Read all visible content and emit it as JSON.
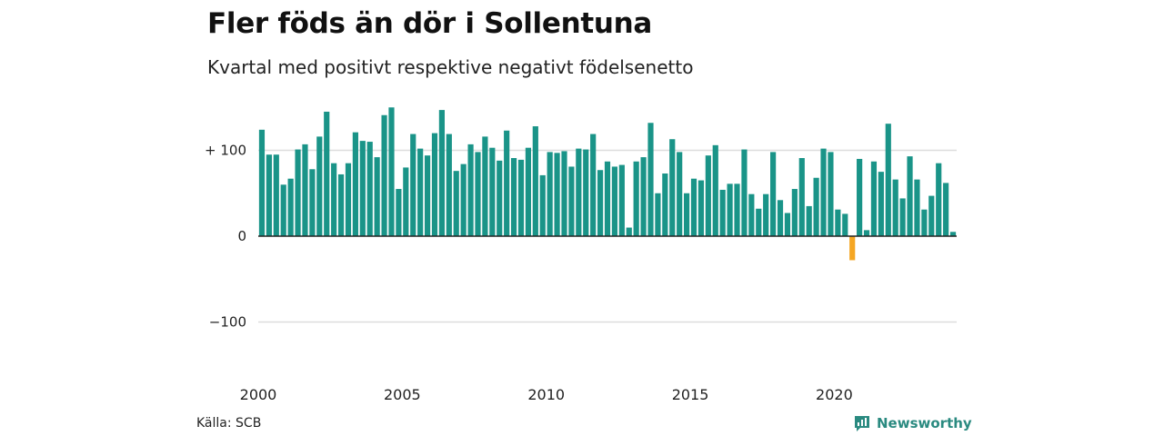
{
  "header": {
    "title": "Fler föds än dör i Sollentuna",
    "subtitle": "Kvartal med positivt respektive negativt födelsenetto"
  },
  "footer": {
    "source": "Källa: SCB",
    "brand": "Newsworthy"
  },
  "chart_data": {
    "type": "bar",
    "xlabel": "",
    "ylabel": "",
    "ylim": [
      -150,
      150
    ],
    "grid": true,
    "y_ticks": [
      {
        "value": 100,
        "label": "+ 100"
      },
      {
        "value": 0,
        "label": "0"
      },
      {
        "value": -100,
        "label": "−100"
      }
    ],
    "x_ticks": [
      {
        "year": 2000,
        "label": "2000"
      },
      {
        "year": 2005,
        "label": "2005"
      },
      {
        "year": 2010,
        "label": "2010"
      },
      {
        "year": 2015,
        "label": "2015"
      },
      {
        "year": 2020,
        "label": "2020"
      }
    ],
    "start": {
      "year": 2000,
      "quarter": 1
    },
    "colors": {
      "positive": "#1a9488",
      "negative": "#f5a623",
      "grid": "#dddddd",
      "axis": "#222222"
    },
    "values": [
      124,
      95,
      95,
      60,
      67,
      101,
      107,
      78,
      116,
      145,
      85,
      72,
      85,
      121,
      111,
      110,
      92,
      141,
      150,
      55,
      80,
      119,
      102,
      94,
      120,
      147,
      119,
      76,
      84,
      107,
      98,
      116,
      103,
      88,
      123,
      91,
      89,
      103,
      128,
      71,
      98,
      97,
      99,
      81,
      102,
      101,
      119,
      77,
      87,
      81,
      83,
      10,
      87,
      92,
      132,
      50,
      73,
      113,
      98,
      50,
      67,
      65,
      94,
      106,
      54,
      61,
      61,
      101,
      49,
      32,
      49,
      98,
      42,
      27,
      55,
      91,
      35,
      68,
      102,
      98,
      31,
      26,
      -28,
      90,
      7,
      87,
      75,
      131,
      66,
      44,
      93,
      66,
      31,
      47,
      85,
      62,
      5
    ]
  }
}
